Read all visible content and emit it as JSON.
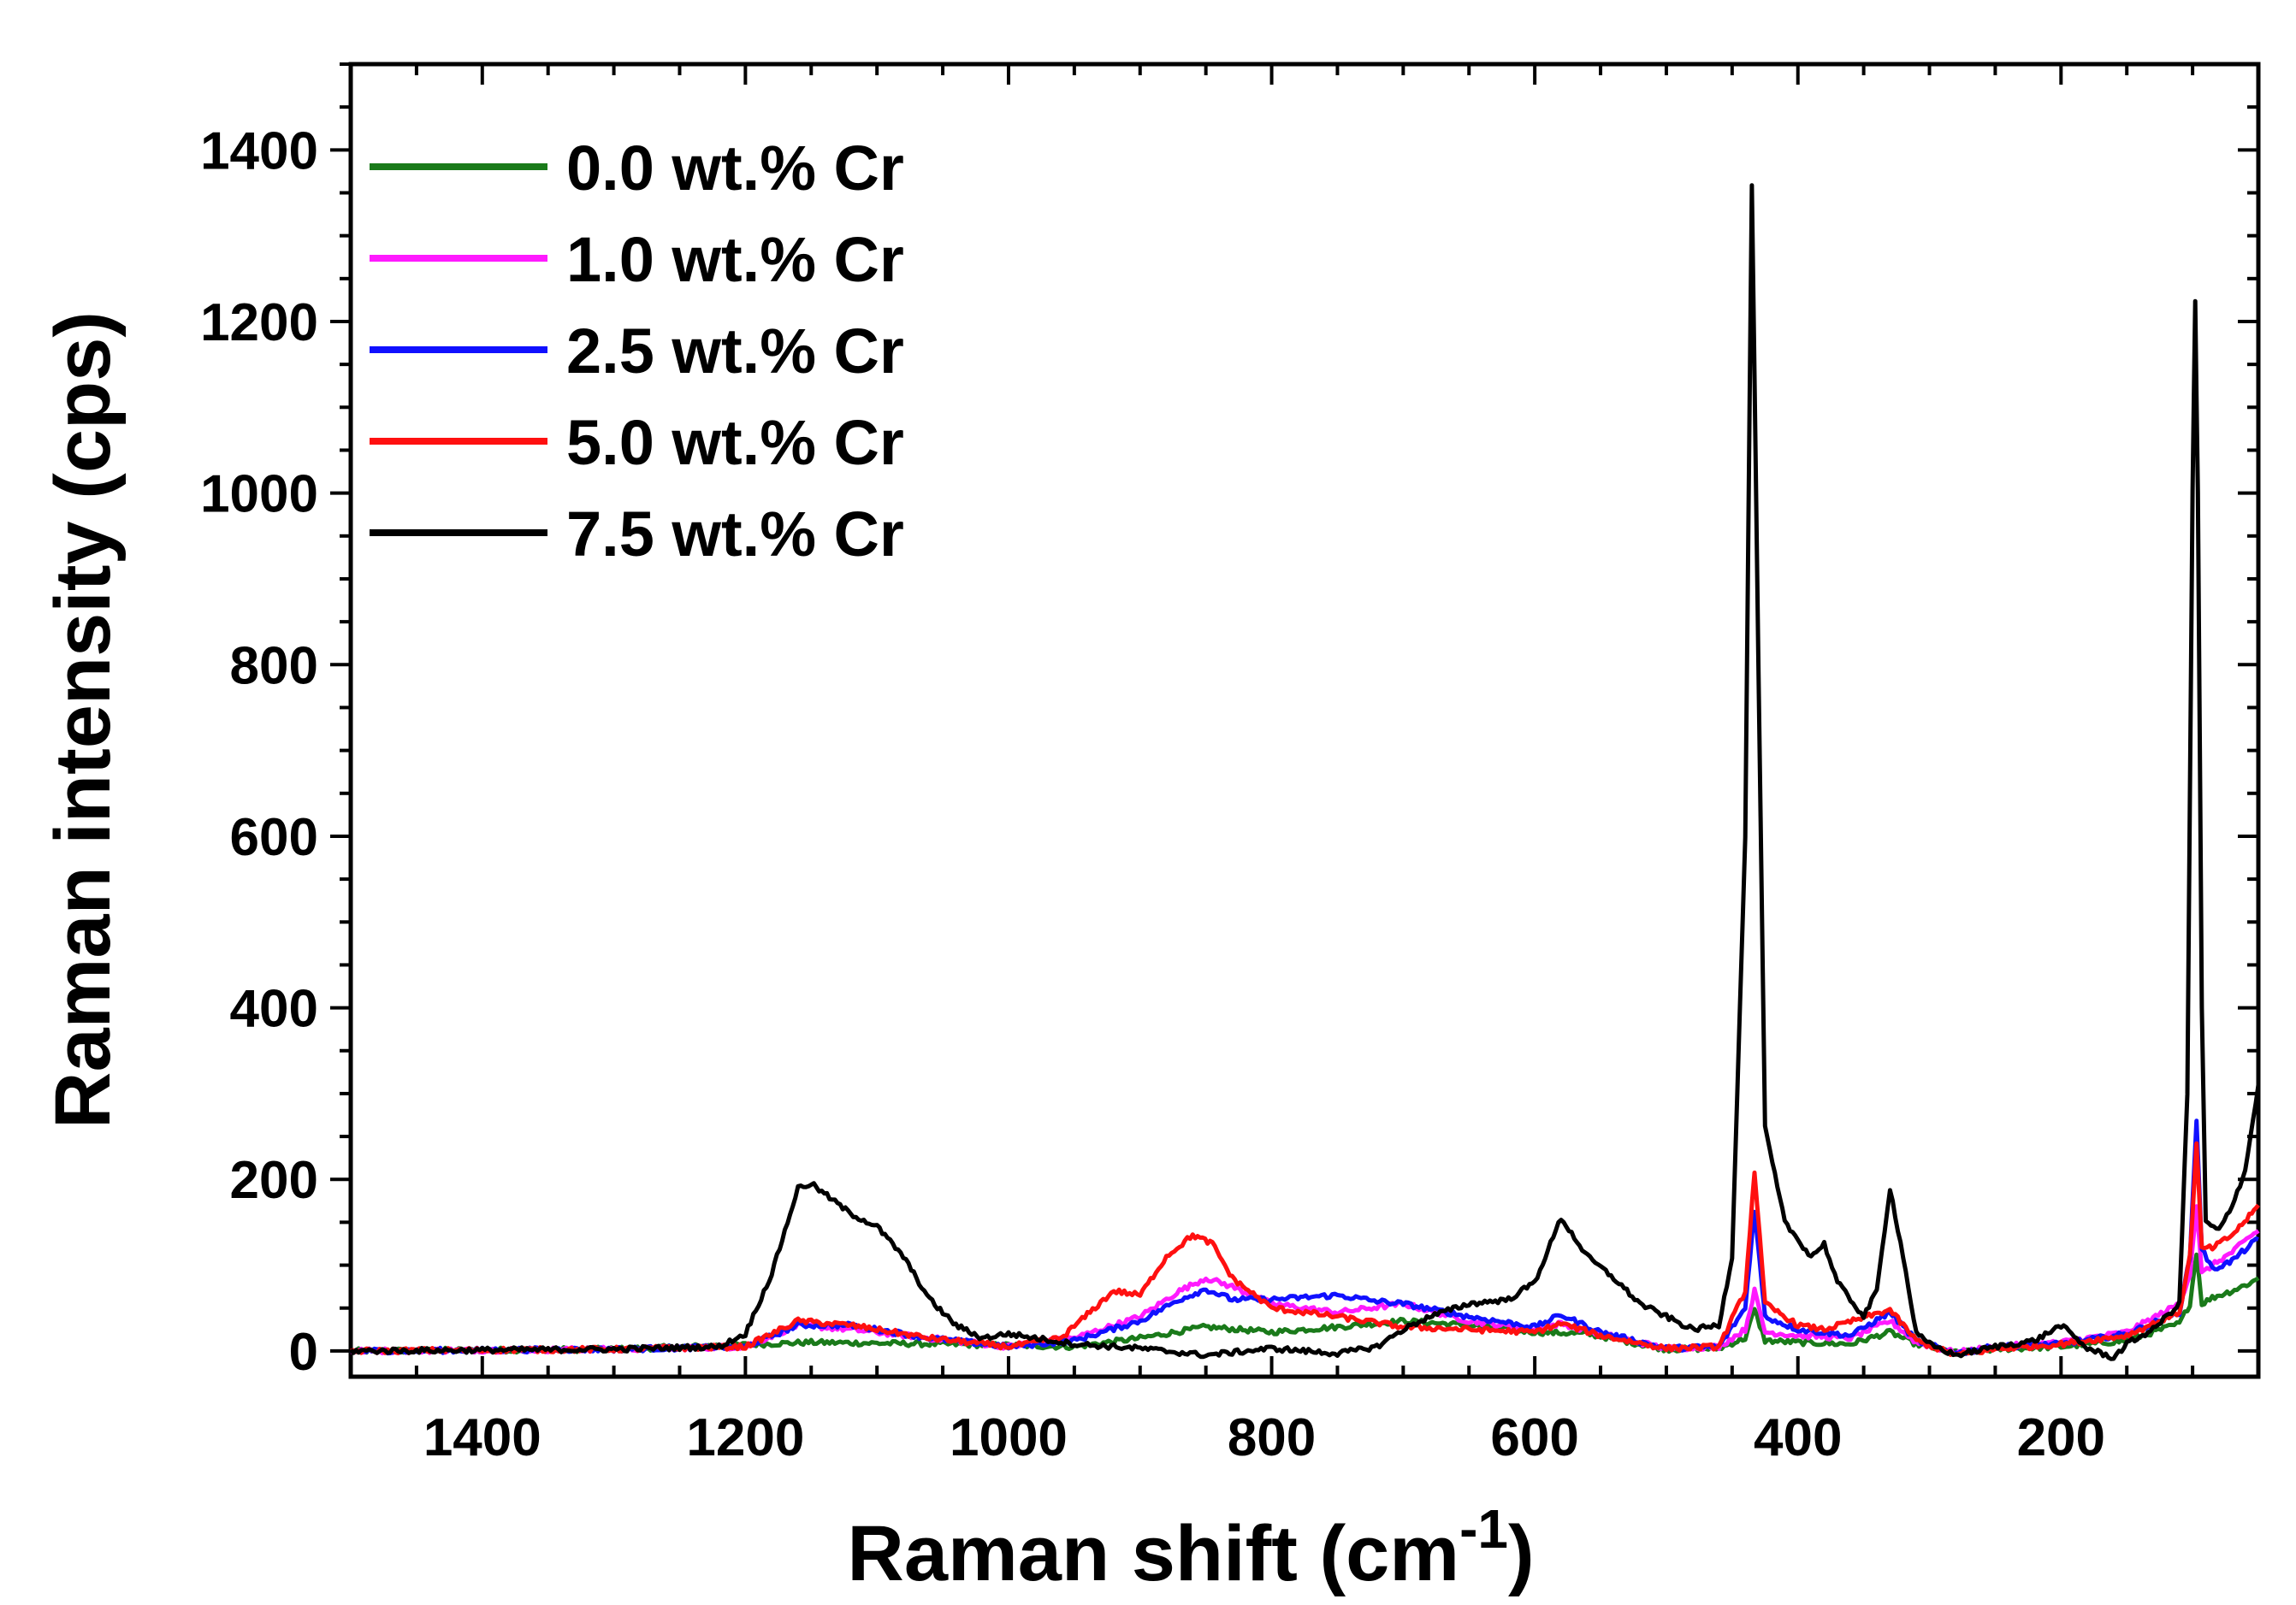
{
  "chart_data": {
    "type": "line",
    "title": "",
    "xlabel": "Raman shift (cm",
    "xlabel_sup": "-1",
    "xlabel_close": ")",
    "ylabel": "Raman intensity (cps)",
    "xlim": [
      1500,
      50
    ],
    "ylim": [
      -30,
      1500
    ],
    "x_reversed": true,
    "xticks": [
      1400,
      1200,
      1000,
      800,
      600,
      400,
      200
    ],
    "yticks": [
      0,
      200,
      400,
      600,
      800,
      1000,
      1200,
      1400
    ],
    "legend_position": "top-left",
    "series": [
      {
        "name": "0.0 wt.% Cr",
        "color": "#1a7a1a",
        "points": [
          [
            1500,
            0
          ],
          [
            1300,
            2
          ],
          [
            1150,
            10
          ],
          [
            1050,
            8
          ],
          [
            950,
            5
          ],
          [
            900,
            15
          ],
          [
            850,
            28
          ],
          [
            800,
            22
          ],
          [
            750,
            28
          ],
          [
            700,
            35
          ],
          [
            650,
            30
          ],
          [
            600,
            22
          ],
          [
            560,
            20
          ],
          [
            500,
            2
          ],
          [
            460,
            3
          ],
          [
            440,
            15
          ],
          [
            433,
            48
          ],
          [
            425,
            12
          ],
          [
            400,
            10
          ],
          [
            360,
            8
          ],
          [
            330,
            22
          ],
          [
            310,
            8
          ],
          [
            280,
            -2
          ],
          [
            250,
            2
          ],
          [
            200,
            5
          ],
          [
            150,
            12
          ],
          [
            110,
            32
          ],
          [
            102,
            55
          ],
          [
            97,
            115
          ],
          [
            93,
            55
          ],
          [
            85,
            62
          ],
          [
            70,
            70
          ],
          [
            55,
            80
          ],
          [
            50,
            85
          ]
        ]
      },
      {
        "name": "1.0 wt.% Cr",
        "color": "#ff1aff",
        "points": [
          [
            1500,
            0
          ],
          [
            1300,
            2
          ],
          [
            1200,
            5
          ],
          [
            1160,
            30
          ],
          [
            1120,
            25
          ],
          [
            1060,
            15
          ],
          [
            1000,
            5
          ],
          [
            950,
            15
          ],
          [
            900,
            40
          ],
          [
            870,
            70
          ],
          [
            850,
            85
          ],
          [
            830,
            75
          ],
          [
            800,
            55
          ],
          [
            750,
            45
          ],
          [
            700,
            55
          ],
          [
            650,
            35
          ],
          [
            600,
            25
          ],
          [
            580,
            32
          ],
          [
            550,
            20
          ],
          [
            500,
            3
          ],
          [
            460,
            5
          ],
          [
            440,
            25
          ],
          [
            433,
            70
          ],
          [
            425,
            22
          ],
          [
            400,
            18
          ],
          [
            360,
            15
          ],
          [
            330,
            35
          ],
          [
            310,
            10
          ],
          [
            280,
            -2
          ],
          [
            250,
            5
          ],
          [
            200,
            10
          ],
          [
            150,
            22
          ],
          [
            110,
            55
          ],
          [
            102,
            90
          ],
          [
            97,
            170
          ],
          [
            93,
            90
          ],
          [
            85,
            100
          ],
          [
            70,
            115
          ],
          [
            55,
            135
          ],
          [
            50,
            140
          ]
        ]
      },
      {
        "name": "2.5 wt.% Cr",
        "color": "#1010ff",
        "points": [
          [
            1500,
            0
          ],
          [
            1300,
            2
          ],
          [
            1200,
            5
          ],
          [
            1160,
            30
          ],
          [
            1120,
            30
          ],
          [
            1060,
            15
          ],
          [
            1000,
            5
          ],
          [
            950,
            12
          ],
          [
            900,
            35
          ],
          [
            870,
            60
          ],
          [
            850,
            72
          ],
          [
            830,
            60
          ],
          [
            800,
            60
          ],
          [
            750,
            65
          ],
          [
            720,
            58
          ],
          [
            700,
            55
          ],
          [
            650,
            40
          ],
          [
            600,
            28
          ],
          [
            580,
            42
          ],
          [
            550,
            22
          ],
          [
            500,
            3
          ],
          [
            460,
            5
          ],
          [
            440,
            50
          ],
          [
            433,
            165
          ],
          [
            425,
            40
          ],
          [
            400,
            25
          ],
          [
            360,
            18
          ],
          [
            330,
            45
          ],
          [
            310,
            12
          ],
          [
            280,
            -3
          ],
          [
            250,
            5
          ],
          [
            200,
            8
          ],
          [
            150,
            20
          ],
          [
            110,
            45
          ],
          [
            102,
            110
          ],
          [
            97,
            270
          ],
          [
            93,
            120
          ],
          [
            85,
            95
          ],
          [
            70,
            105
          ],
          [
            55,
            125
          ],
          [
            50,
            130
          ]
        ]
      },
      {
        "name": "5.0 wt.% Cr",
        "color": "#ff1010",
        "points": [
          [
            1500,
            0
          ],
          [
            1300,
            2
          ],
          [
            1200,
            5
          ],
          [
            1160,
            35
          ],
          [
            1120,
            30
          ],
          [
            1060,
            15
          ],
          [
            1000,
            5
          ],
          [
            960,
            15
          ],
          [
            920,
            70
          ],
          [
            900,
            65
          ],
          [
            880,
            110
          ],
          [
            860,
            135
          ],
          [
            845,
            125
          ],
          [
            830,
            85
          ],
          [
            800,
            50
          ],
          [
            750,
            40
          ],
          [
            700,
            28
          ],
          [
            650,
            25
          ],
          [
            600,
            22
          ],
          [
            580,
            32
          ],
          [
            550,
            18
          ],
          [
            500,
            3
          ],
          [
            460,
            5
          ],
          [
            440,
            70
          ],
          [
            433,
            210
          ],
          [
            425,
            55
          ],
          [
            400,
            30
          ],
          [
            380,
            25
          ],
          [
            330,
            48
          ],
          [
            310,
            12
          ],
          [
            280,
            -5
          ],
          [
            250,
            2
          ],
          [
            200,
            8
          ],
          [
            150,
            18
          ],
          [
            110,
            45
          ],
          [
            102,
            110
          ],
          [
            97,
            240
          ],
          [
            93,
            120
          ],
          [
            85,
            120
          ],
          [
            70,
            135
          ],
          [
            55,
            160
          ],
          [
            50,
            170
          ]
        ]
      },
      {
        "name": "7.5 wt.% Cr",
        "color": "#000000",
        "points": [
          [
            1500,
            0
          ],
          [
            1300,
            2
          ],
          [
            1220,
            5
          ],
          [
            1200,
            20
          ],
          [
            1180,
            90
          ],
          [
            1160,
            190
          ],
          [
            1150,
            195
          ],
          [
            1120,
            160
          ],
          [
            1100,
            145
          ],
          [
            1080,
            110
          ],
          [
            1060,
            60
          ],
          [
            1040,
            30
          ],
          [
            1020,
            15
          ],
          [
            1000,
            20
          ],
          [
            950,
            8
          ],
          [
            900,
            3
          ],
          [
            850,
            -5
          ],
          [
            800,
            3
          ],
          [
            750,
            -3
          ],
          [
            720,
            5
          ],
          [
            700,
            25
          ],
          [
            680,
            40
          ],
          [
            650,
            55
          ],
          [
            620,
            60
          ],
          [
            600,
            80
          ],
          [
            580,
            155
          ],
          [
            560,
            110
          ],
          [
            540,
            85
          ],
          [
            520,
            55
          ],
          [
            500,
            40
          ],
          [
            480,
            25
          ],
          [
            460,
            30
          ],
          [
            450,
            110
          ],
          [
            440,
            600
          ],
          [
            435,
            1360
          ],
          [
            430,
            800
          ],
          [
            425,
            260
          ],
          [
            410,
            150
          ],
          [
            400,
            130
          ],
          [
            390,
            110
          ],
          [
            380,
            125
          ],
          [
            370,
            80
          ],
          [
            350,
            40
          ],
          [
            340,
            70
          ],
          [
            330,
            190
          ],
          [
            320,
            110
          ],
          [
            310,
            20
          ],
          [
            300,
            8
          ],
          [
            280,
            -5
          ],
          [
            250,
            5
          ],
          [
            220,
            12
          ],
          [
            200,
            30
          ],
          [
            180,
            3
          ],
          [
            160,
            -8
          ],
          [
            150,
            8
          ],
          [
            130,
            25
          ],
          [
            110,
            55
          ],
          [
            104,
            300
          ],
          [
            100,
            1000
          ],
          [
            98,
            1225
          ],
          [
            96,
            1000
          ],
          [
            93,
            400
          ],
          [
            90,
            150
          ],
          [
            80,
            140
          ],
          [
            70,
            170
          ],
          [
            60,
            210
          ],
          [
            50,
            310
          ]
        ]
      }
    ]
  }
}
